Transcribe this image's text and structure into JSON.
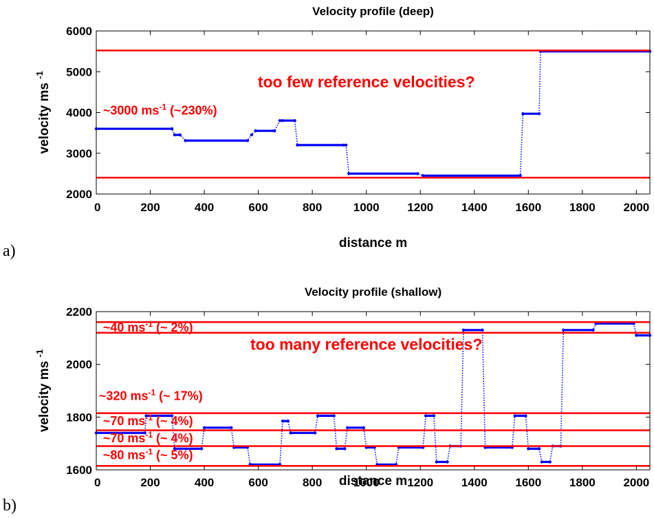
{
  "colors": {
    "series": "#0000ff",
    "reference": "#ff0000",
    "axes": "#000000"
  },
  "panels": [
    {
      "letter": "a)"
    },
    {
      "letter": "b)"
    }
  ],
  "chart_data": [
    {
      "type": "line",
      "title": "Velocity profile (deep)",
      "xlabel": "distance m",
      "ylabel": "velocity ms",
      "ylabel_sup": "-1",
      "xlim": [
        0,
        2050
      ],
      "ylim": [
        2000,
        6000
      ],
      "xticks": [
        "0",
        "200",
        "400",
        "600",
        "800",
        "1000",
        "1200",
        "1400",
        "1600",
        "1800",
        "2000"
      ],
      "yticks": [
        "2000",
        "3000",
        "4000",
        "5000",
        "6000"
      ],
      "series": [
        {
          "x": [
            0,
            280,
            290,
            310,
            330,
            560,
            575,
            590,
            660,
            680,
            690,
            735,
            745,
            915,
            925,
            935,
            1190,
            1210,
            1570,
            1580,
            1640,
            1645,
            2050
          ],
          "y": [
            3600,
            3600,
            3450,
            3450,
            3310,
            3310,
            3450,
            3550,
            3550,
            3800,
            3800,
            3800,
            3200,
            3200,
            3200,
            2500,
            2500,
            2450,
            2450,
            3970,
            3970,
            5500,
            5500
          ]
        }
      ],
      "reference_lines": [
        5520,
        2400
      ],
      "annotations": [
        {
          "text": "too few reference velocities?",
          "x": 1000,
          "y": 4620
        },
        {
          "pre": "~3000 ms",
          "sup": "-1",
          "post": " (~230%)",
          "x": 25,
          "y": 3950
        }
      ]
    },
    {
      "type": "line",
      "title": "Velocity profile (shallow)",
      "xlabel": "distance m",
      "ylabel": "velocity ms",
      "ylabel_sup": "-1",
      "xlim": [
        0,
        2050
      ],
      "ylim": [
        1600,
        2200
      ],
      "xticks": [
        "0",
        "200",
        "400",
        "600",
        "800",
        "1000",
        "1200",
        "1400",
        "1600",
        "1800",
        "2000"
      ],
      "yticks": [
        "1600",
        "1800",
        "2000",
        "2200"
      ],
      "series": [
        {
          "x": [
            0,
            180,
            185,
            280,
            290,
            390,
            400,
            500,
            510,
            560,
            570,
            680,
            690,
            710,
            720,
            810,
            820,
            880,
            890,
            920,
            930,
            990,
            1000,
            1030,
            1040,
            1110,
            1120,
            1210,
            1220,
            1250,
            1260,
            1300,
            1310,
            1350,
            1360,
            1430,
            1440,
            1540,
            1550,
            1590,
            1600,
            1640,
            1650,
            1680,
            1690,
            1720,
            1730,
            1840,
            1850,
            1990,
            2000,
            2050
          ],
          "y": [
            1740,
            1740,
            1805,
            1805,
            1680,
            1680,
            1760,
            1760,
            1685,
            1685,
            1620,
            1620,
            1785,
            1785,
            1740,
            1740,
            1805,
            1805,
            1680,
            1680,
            1760,
            1760,
            1685,
            1685,
            1620,
            1620,
            1685,
            1685,
            1805,
            1805,
            1630,
            1630,
            1690,
            1690,
            2130,
            2130,
            1685,
            1685,
            1805,
            1805,
            1680,
            1680,
            1630,
            1630,
            1690,
            1690,
            2130,
            2130,
            2155,
            2155,
            2110,
            2110
          ]
        }
      ],
      "reference_lines": [
        2160,
        2120,
        1815,
        1750,
        1690,
        1615
      ],
      "annotations": [
        {
          "text": "too many reference velocities?",
          "x": 1000,
          "y": 2055
        },
        {
          "pre": "~40 ms",
          "sup": "-1",
          "post": " (~ 2%)",
          "x": 25,
          "y": 2125
        },
        {
          "pre": "~320 ms",
          "sup": "-1",
          "post": " (~ 17%)",
          "x": 10,
          "y": 1865
        },
        {
          "pre": "~70 ms",
          "sup": "-1",
          "post": " (~ 4%)",
          "x": 25,
          "y": 1770
        },
        {
          "pre": "~70 ms",
          "sup": "-1",
          "post": " (~ 4%)",
          "x": 25,
          "y": 1705
        },
        {
          "pre": "~80 ms",
          "sup": "-1",
          "post": " (~ 5%)",
          "x": 25,
          "y": 1640
        }
      ]
    }
  ]
}
